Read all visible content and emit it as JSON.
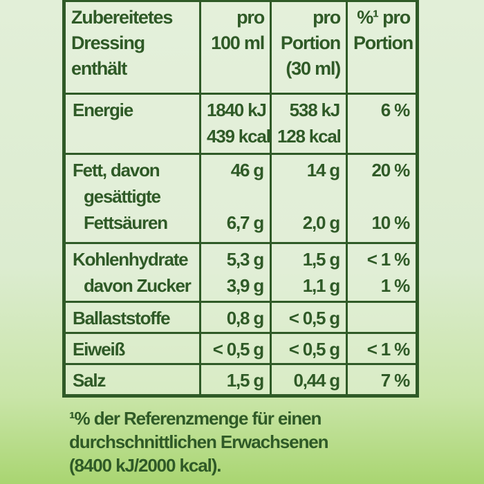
{
  "header": {
    "col1": [
      "Zubereitetes",
      "Dressing",
      "enthält"
    ],
    "col2": [
      "pro",
      "100 ml"
    ],
    "col3": [
      "pro",
      "Portion",
      "(30 ml)"
    ],
    "col4": [
      "%¹ pro",
      "Portion"
    ]
  },
  "rows": [
    {
      "name": "Energie",
      "per100": [
        "1840 kJ",
        "439 kcal"
      ],
      "portion": [
        "538 kJ",
        "128 kcal"
      ],
      "pct": [
        "6 %"
      ]
    },
    {
      "name": [
        "Fett, davon",
        "gesättigte",
        "Fettsäuren"
      ],
      "per100": [
        "46 g",
        "6,7 g"
      ],
      "portion": [
        "14 g",
        "2,0 g"
      ],
      "pct": [
        "20 %",
        "10 %"
      ]
    },
    {
      "name": [
        "Kohlenhydrate",
        "davon Zucker"
      ],
      "per100": [
        "5,3 g",
        "3,9 g"
      ],
      "portion": [
        "1,5 g",
        "1,1 g"
      ],
      "pct": [
        "< 1 %",
        "1 %"
      ]
    },
    {
      "name": "Ballaststoffe",
      "per100": "0,8 g",
      "portion": "< 0,5 g",
      "pct": ""
    },
    {
      "name": "Eiweiß",
      "per100": "< 0,5 g",
      "portion": "< 0,5 g",
      "pct": "< 1 %"
    },
    {
      "name": "Salz",
      "per100": "1,5 g",
      "portion": "0,44 g",
      "pct": "7 %"
    }
  ],
  "footnote": [
    "¹% der Referenzmenge für einen",
    "durchschnittlichen Erwachsenen",
    "(8400 kJ/2000 kcal)."
  ],
  "colors": {
    "text": "#2f5a27",
    "background_top": "#e2efd8",
    "background_bottom": "#a9d571"
  }
}
